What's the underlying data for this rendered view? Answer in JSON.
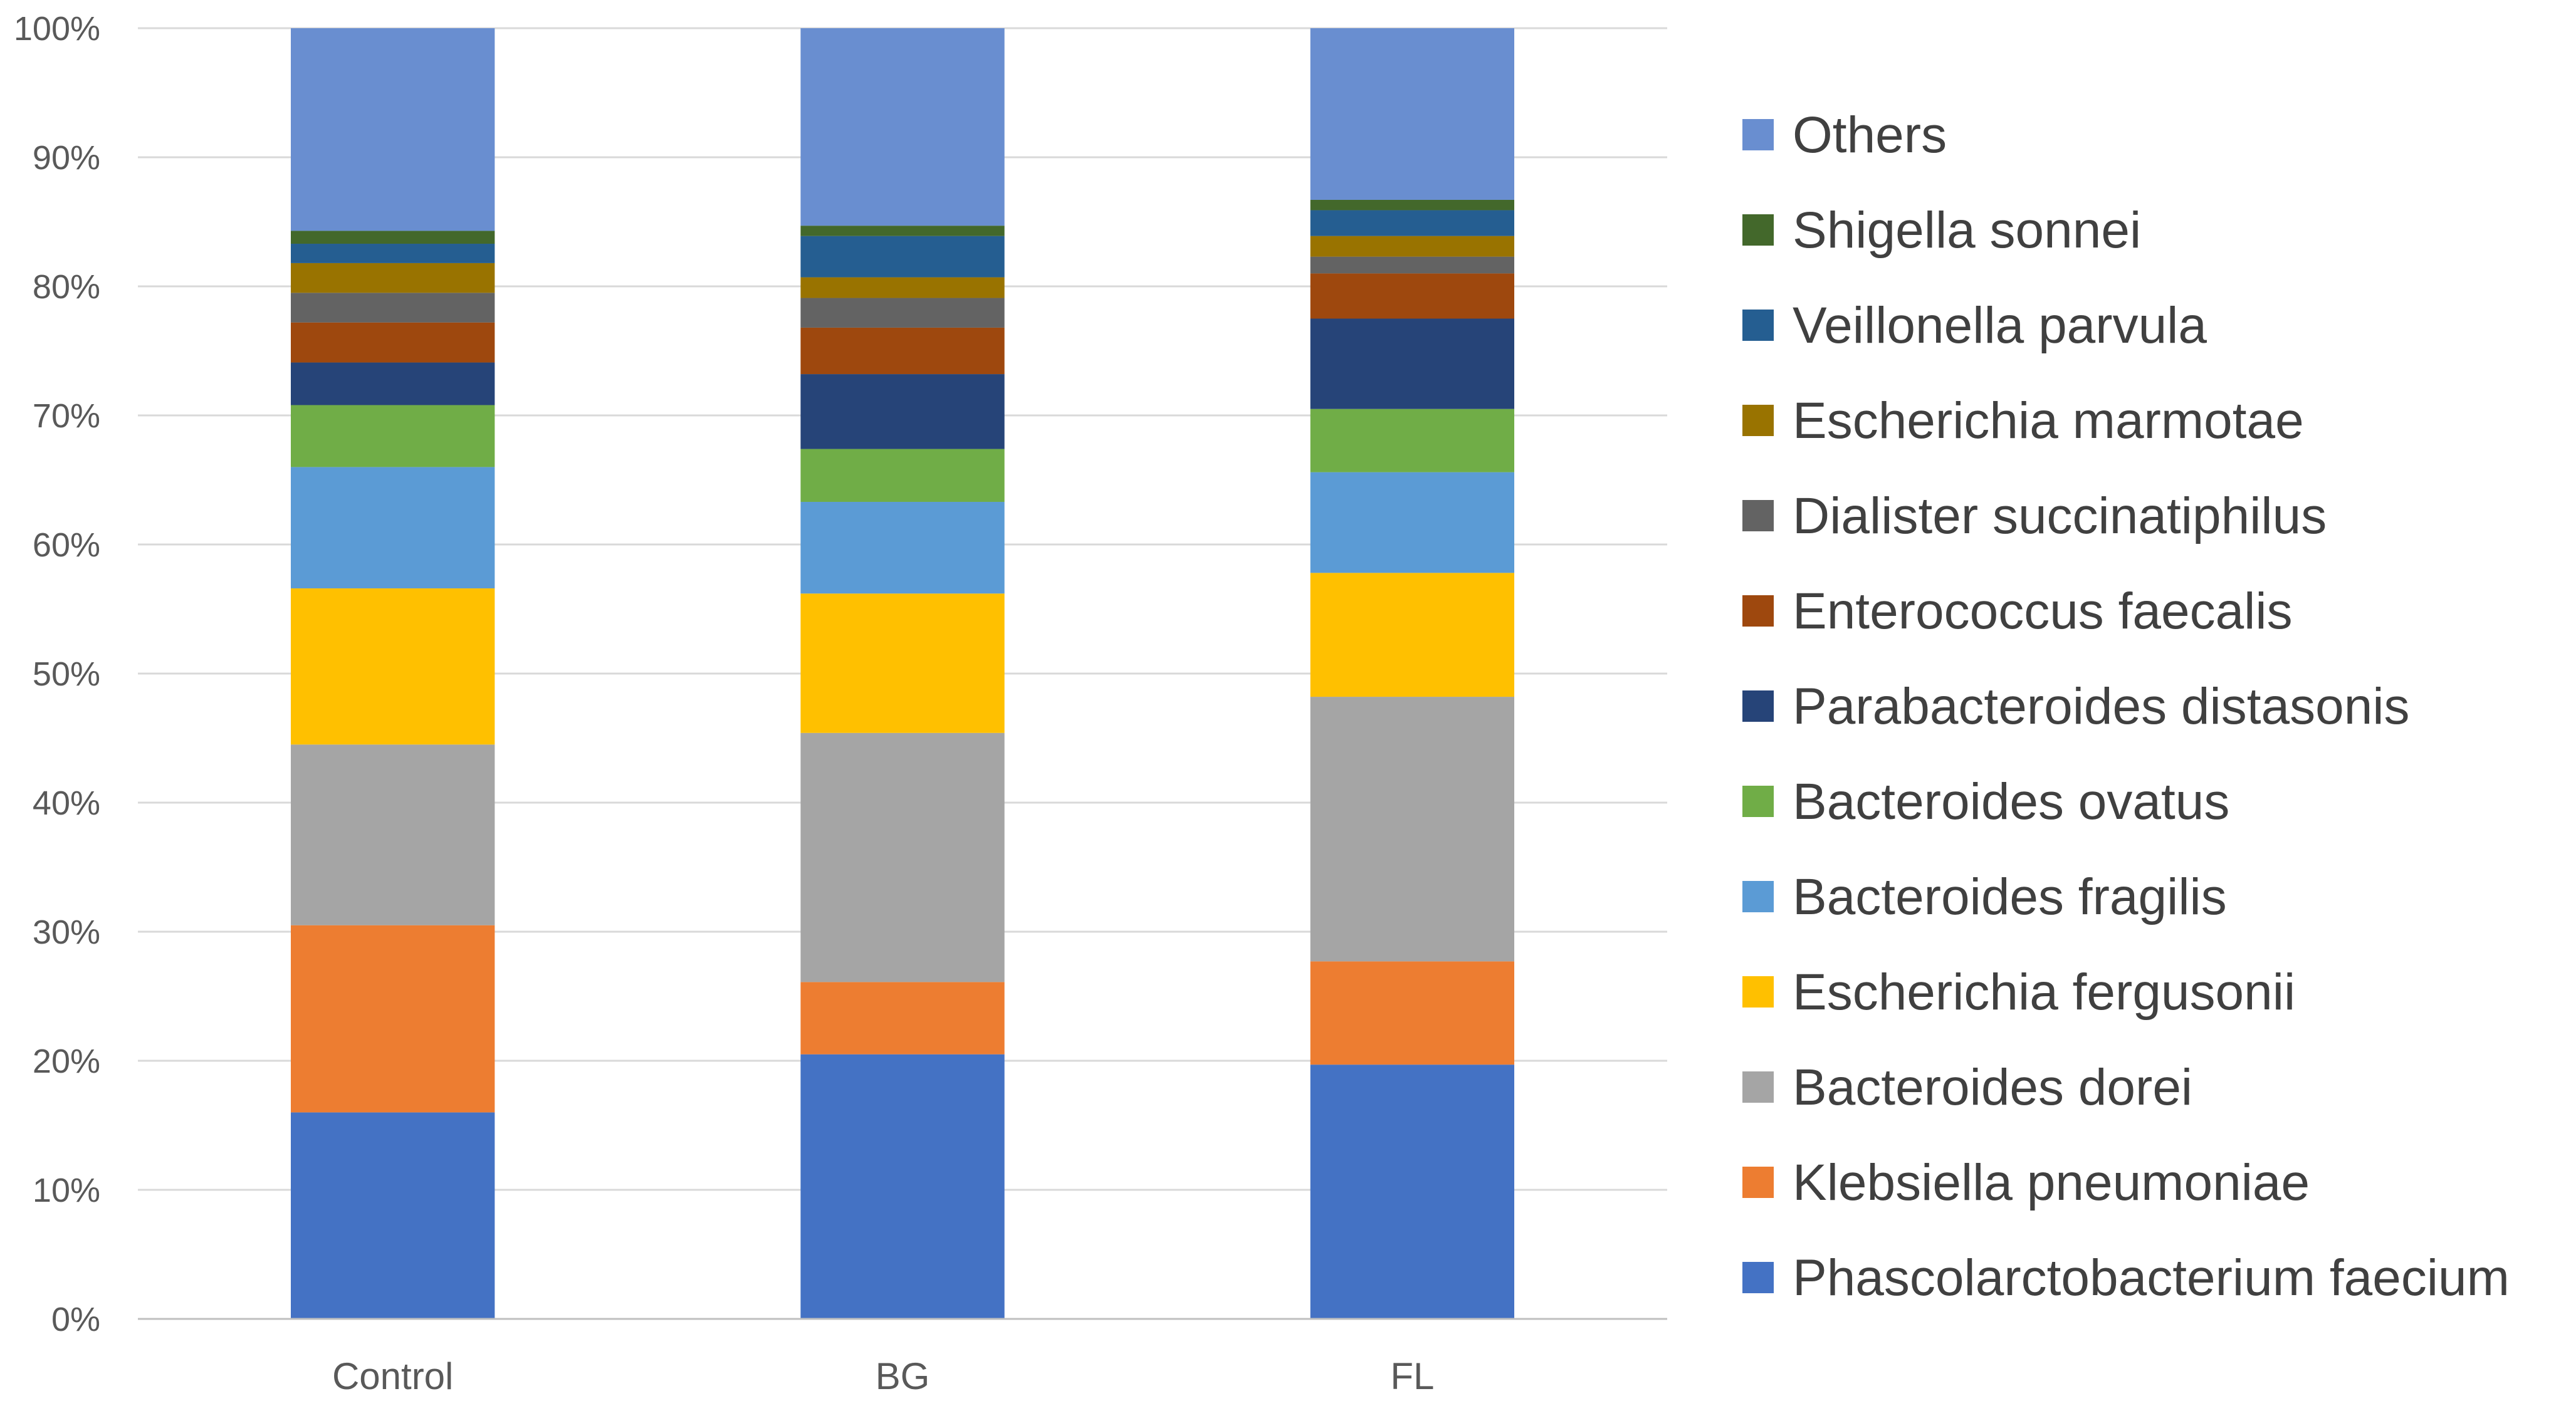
{
  "chart_data": {
    "type": "bar",
    "stacked": true,
    "percent": true,
    "title": "",
    "xlabel": "",
    "ylabel": "",
    "ylim": [
      0,
      100
    ],
    "y_ticks": [
      "0%",
      "10%",
      "20%",
      "30%",
      "40%",
      "50%",
      "60%",
      "70%",
      "80%",
      "90%",
      "100%"
    ],
    "categories": [
      "Control",
      "BG",
      "FL"
    ],
    "legend_position": "right",
    "series": [
      {
        "name": "Phascolarctobacterium faecium",
        "color": "#4472c4",
        "values": [
          16.0,
          20.5,
          19.7
        ]
      },
      {
        "name": "Klebsiella pneumoniae",
        "color": "#ed7d31",
        "values": [
          14.5,
          5.6,
          8.0
        ]
      },
      {
        "name": "Bacteroides dorei",
        "color": "#a5a5a5",
        "values": [
          14.0,
          19.3,
          20.5
        ]
      },
      {
        "name": "Escherichia fergusonii",
        "color": "#ffc000",
        "values": [
          12.1,
          10.8,
          9.6
        ]
      },
      {
        "name": "Bacteroides fragilis",
        "color": "#5b9bd5",
        "values": [
          9.4,
          7.1,
          7.8
        ]
      },
      {
        "name": "Bacteroides ovatus",
        "color": "#70ad47",
        "values": [
          4.8,
          4.1,
          4.9
        ]
      },
      {
        "name": "Parabacteroides distasonis",
        "color": "#264478",
        "values": [
          3.3,
          5.8,
          7.0
        ]
      },
      {
        "name": "Enterococcus faecalis",
        "color": "#9e480e",
        "values": [
          3.1,
          3.6,
          3.5
        ]
      },
      {
        "name": "Dialister succinatiphilus",
        "color": "#636363",
        "values": [
          2.3,
          2.3,
          1.3
        ]
      },
      {
        "name": "Escherichia marmotae",
        "color": "#997300",
        "values": [
          2.3,
          1.6,
          1.6
        ]
      },
      {
        "name": "Veillonella parvula",
        "color": "#255e91",
        "values": [
          1.5,
          3.2,
          2.0
        ]
      },
      {
        "name": "Shigella sonnei",
        "color": "#43682b",
        "values": [
          1.0,
          0.8,
          0.8
        ]
      },
      {
        "name": "Others",
        "color": "#698ed0",
        "values": [
          15.7,
          15.3,
          13.3
        ]
      }
    ]
  }
}
